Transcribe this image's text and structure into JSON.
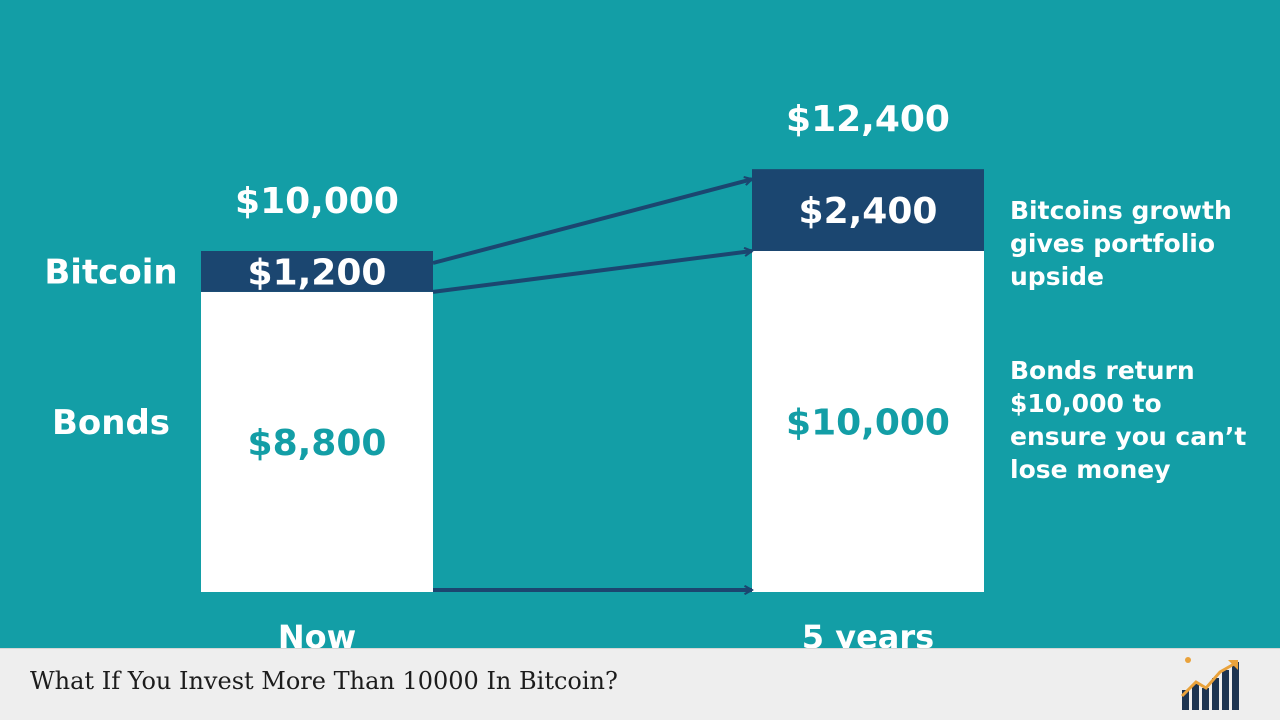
{
  "chart_data": {
    "type": "bar",
    "categories": [
      "Now",
      "5 years"
    ],
    "series": [
      {
        "name": "Bonds",
        "values": [
          8800,
          10000
        ],
        "labels": [
          "$8,800",
          "$10,000"
        ],
        "color": "#ffffff",
        "label_color": "#139ea6"
      },
      {
        "name": "Bitcoin",
        "values": [
          1200,
          2400
        ],
        "labels": [
          "$1,200",
          "$2,400"
        ],
        "color": "#1b4670",
        "label_color": "#ffffff"
      }
    ],
    "totals": [
      "$10,000",
      "$12,400"
    ],
    "row_labels": [
      "Bitcoin",
      "Bonds"
    ],
    "annotations": [
      {
        "id": "bitcoin-growth",
        "lines": [
          "Bitcoins growth",
          "gives portfolio",
          "upside"
        ]
      },
      {
        "id": "bonds-return",
        "lines": [
          "Bonds return",
          "$10,000 to",
          "ensure you can’t",
          "lose money"
        ]
      }
    ],
    "title": "",
    "xlabel": "",
    "ylabel": "",
    "grid": false
  },
  "colors": {
    "background": "#139ea6",
    "bitcoin": "#1b4670",
    "bonds": "#ffffff",
    "arrow": "#1b4670",
    "text_light": "#ffffff",
    "footer_bg": "#eeeeee"
  },
  "footer": {
    "title": "What If You Invest More Than 10000 In Bitcoin?",
    "logo_icon": "growth-chart-logo-icon"
  }
}
